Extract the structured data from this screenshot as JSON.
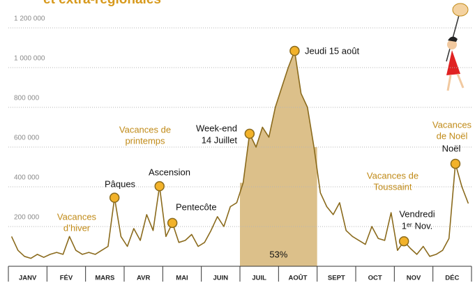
{
  "chart_data": {
    "type": "line",
    "title": "et extra-régionales",
    "categories": [
      "JANV",
      null,
      null,
      null,
      null,
      null,
      "FÉV",
      null,
      null,
      null,
      null,
      null,
      "MARS",
      null,
      null,
      null,
      null,
      null,
      "AVR",
      null,
      null,
      null,
      null,
      null,
      "MAI",
      null,
      null,
      null,
      null,
      null,
      "JUIN",
      null,
      null,
      null,
      null,
      null,
      "JUIL",
      null,
      null,
      null,
      null,
      null,
      "AOÛT",
      null,
      null,
      null,
      null,
      null,
      "SEPT",
      null,
      null,
      null,
      null,
      null,
      "OCT",
      null,
      null,
      null,
      null,
      null,
      "NOV",
      null,
      null,
      null,
      null,
      null,
      "DÉC",
      null,
      null,
      null,
      null,
      null
    ],
    "series": [
      {
        "name": null,
        "color": "#8a6a1c",
        "values": [
          150000,
          80000,
          50000,
          40000,
          60000,
          45000,
          60000,
          70000,
          60000,
          150000,
          80000,
          60000,
          70000,
          60000,
          80000,
          100000,
          345000,
          150000,
          100000,
          190000,
          130000,
          260000,
          180000,
          403000,
          150000,
          218000,
          120000,
          130000,
          160000,
          100000,
          120000,
          180000,
          250000,
          200000,
          300000,
          320000,
          420000,
          667000,
          600000,
          700000,
          650000,
          800000,
          900000,
          1000000,
          1084000,
          870000,
          800000,
          600000,
          370000,
          300000,
          260000,
          320000,
          180000,
          150000,
          130000,
          110000,
          200000,
          140000,
          130000,
          270000,
          80000,
          126000,
          90000,
          60000,
          100000,
          50000,
          60000,
          80000,
          140000,
          516000,
          400000,
          316000
        ]
      }
    ],
    "ylim": [
      0,
      1300000
    ],
    "yticks": [
      {
        "value": 200000,
        "label": "200 000"
      },
      {
        "value": 400000,
        "label": "400 000"
      },
      {
        "value": 600000,
        "label": "600 000"
      },
      {
        "value": 800000,
        "label": "800 000"
      },
      {
        "value": 1000000,
        "label": "1 000 000"
      },
      {
        "value": 1200000,
        "label": "1 200 000"
      }
    ],
    "grid": true,
    "highlight": {
      "from": "JUIL",
      "to": "AOÛT",
      "label": "53%",
      "color": "#dcc08a"
    },
    "annotations": [
      {
        "lines": [
          "Pâques"
        ],
        "index": 16
      },
      {
        "lines": [
          "Ascension"
        ],
        "index": 23
      },
      {
        "lines": [
          "Pentecôte"
        ],
        "index": 25
      },
      {
        "lines": [
          "Week-end",
          "14 Juillet"
        ],
        "index": 37
      },
      {
        "lines": [
          "Jeudi 15 août"
        ],
        "index": 44
      },
      {
        "lines": [
          "Vendredi",
          "1ᵉʳ Nov."
        ],
        "index": 61
      },
      {
        "lines": [
          "Noël"
        ],
        "index": 69
      }
    ],
    "periods": [
      {
        "lines": [
          "Vacances",
          "d’hiver"
        ]
      },
      {
        "lines": [
          "Vacances de",
          "printemps"
        ]
      },
      {
        "lines": [
          "Vacances de",
          "Toussaint"
        ]
      },
      {
        "lines": [
          "Vacances",
          "de Noël"
        ]
      }
    ]
  }
}
